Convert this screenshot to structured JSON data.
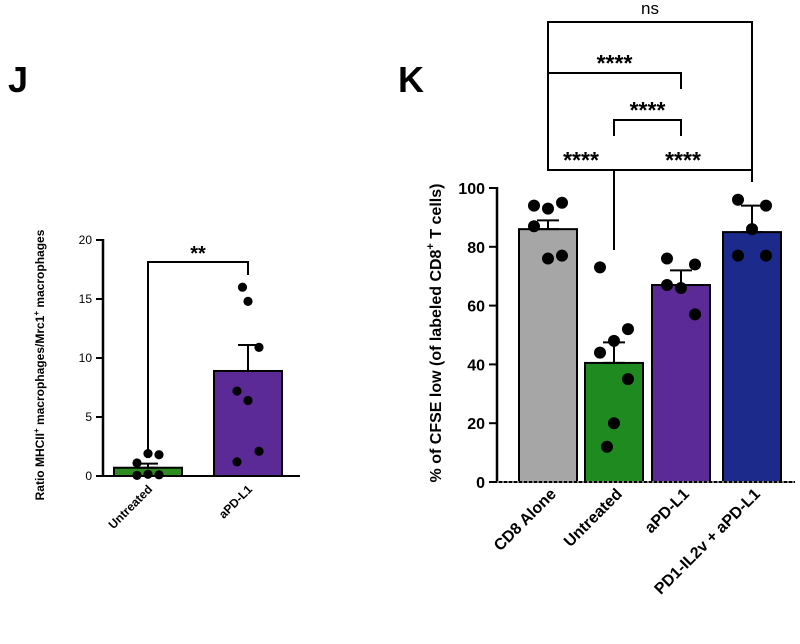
{
  "panels": [
    {
      "id": "J",
      "type": "bar",
      "letter": "J",
      "ylabel_parts": [
        "Ratio MHCII",
        "+",
        " macrophages/Mrc1",
        "+",
        " macrophages"
      ],
      "ylim": [
        0,
        20
      ],
      "yticks": [
        "0",
        "5",
        "10",
        "15",
        "20"
      ],
      "categories": [
        "Untreated",
        "aPD-L1"
      ],
      "bars": [
        {
          "label": "Untreated",
          "mean": 0.7,
          "sem": 0.35,
          "color": "#2e8b22",
          "points": [
            0.05,
            0.1,
            0.15,
            1.1,
            1.8,
            1.9
          ]
        },
        {
          "label": "aPD-L1",
          "mean": 8.9,
          "sem": 2.2,
          "color": "#5b2a96",
          "points": [
            1.2,
            2.1,
            6.4,
            7.2,
            10.9,
            14.8,
            16.0
          ]
        }
      ],
      "comparisons": [
        {
          "from": 0,
          "to": 1,
          "label": "**",
          "level": 0
        }
      ]
    },
    {
      "id": "K",
      "type": "bar",
      "letter": "K",
      "ylabel_parts": [
        "% of CFSE low (of labeled CD8",
        "+",
        " T cells)"
      ],
      "ylim": [
        0,
        100
      ],
      "yticks": [
        "0",
        "20",
        "40",
        "60",
        "80",
        "100"
      ],
      "categories": [
        "CD8 Alone",
        "Untreated",
        "aPD-L1",
        "PD1-IL2v + aPD-L1"
      ],
      "bars": [
        {
          "label": "CD8 Alone",
          "mean": 86,
          "sem": 3,
          "color": "#a6a6a6",
          "points": [
            94,
            95,
            93,
            87,
            77,
            76
          ]
        },
        {
          "label": "Untreated",
          "mean": 40.5,
          "sem": 7,
          "color": "#1f8a1f",
          "points": [
            73,
            52,
            48,
            44,
            35,
            20,
            12
          ]
        },
        {
          "label": "aPD-L1",
          "mean": 67,
          "sem": 5,
          "color": "#5b2a96",
          "points": [
            76,
            74,
            66,
            67,
            57
          ]
        },
        {
          "label": "PD1-IL2v + aPD-L1",
          "mean": 85,
          "sem": 9,
          "color": "#1c2a8c",
          "points": [
            96,
            94,
            86,
            77,
            77
          ]
        }
      ],
      "comparisons": [
        {
          "from": 0,
          "to": 1,
          "label": "****",
          "level": 0
        },
        {
          "from": 1,
          "to": 3,
          "label": "****",
          "level": 0
        },
        {
          "from": 1,
          "to": 2,
          "label": "****",
          "level": 1
        },
        {
          "from": 0,
          "to": 2,
          "label": "****",
          "level": 2
        },
        {
          "from": 0,
          "to": 3,
          "label": "ns",
          "level": 3
        }
      ]
    }
  ]
}
